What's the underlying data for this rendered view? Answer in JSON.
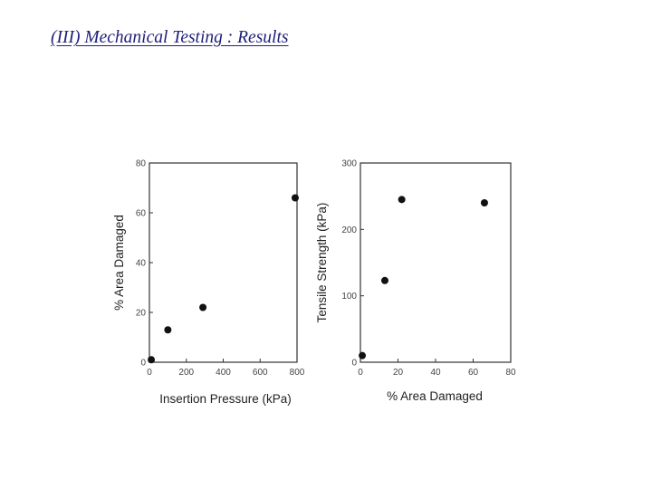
{
  "slide": {
    "title": "(III) Mechanical Testing : Results"
  },
  "chart_data": [
    {
      "type": "scatter",
      "title": "",
      "xlabel": "Insertion Pressure (kPa)",
      "ylabel": "% Area Damaged",
      "xlim": [
        0,
        800
      ],
      "ylim": [
        0,
        80
      ],
      "xticks": [
        0,
        200,
        400,
        600,
        800
      ],
      "yticks": [
        0,
        20,
        40,
        60,
        80
      ],
      "grid": false,
      "points": [
        {
          "x": 10,
          "y": 1
        },
        {
          "x": 100,
          "y": 13
        },
        {
          "x": 290,
          "y": 22
        },
        {
          "x": 790,
          "y": 66
        }
      ]
    },
    {
      "type": "scatter",
      "title": "",
      "xlabel": "% Area Damaged",
      "ylabel": "Tensile Strength (kPa)",
      "xlim": [
        0,
        80
      ],
      "ylim": [
        0,
        300
      ],
      "xticks": [
        0,
        20,
        40,
        60,
        80
      ],
      "yticks": [
        0,
        100,
        200,
        300
      ],
      "grid": false,
      "points": [
        {
          "x": 1,
          "y": 10
        },
        {
          "x": 13,
          "y": 123
        },
        {
          "x": 22,
          "y": 245
        },
        {
          "x": 66,
          "y": 240
        }
      ]
    }
  ]
}
